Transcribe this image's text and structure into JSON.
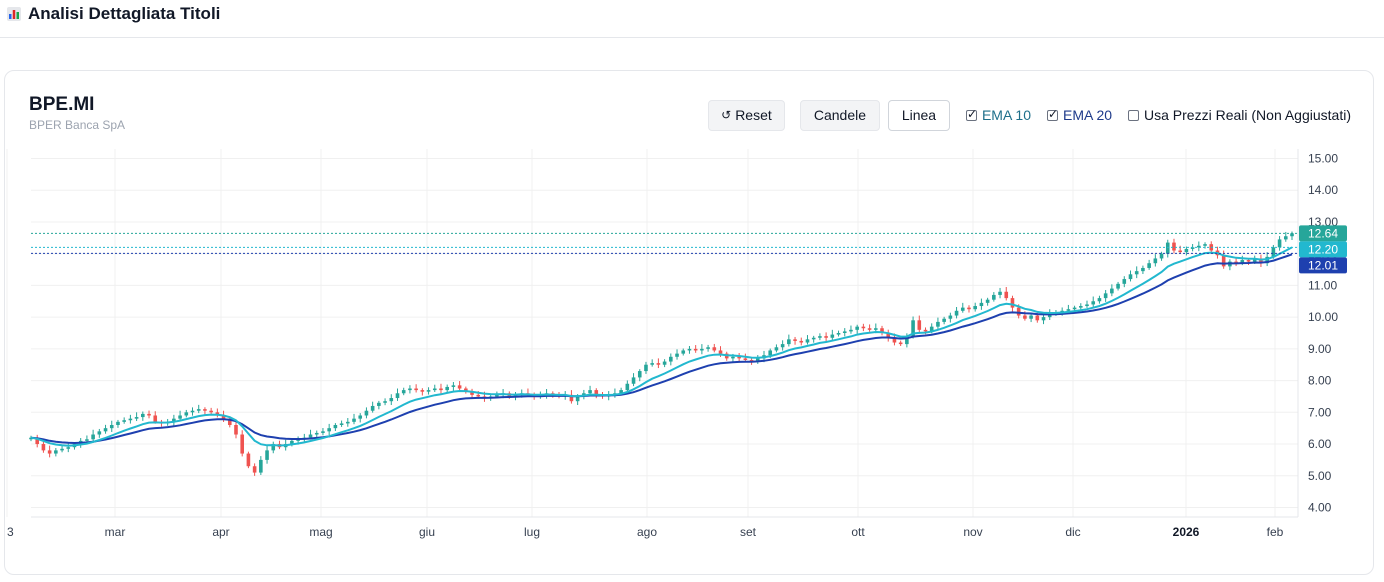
{
  "header": {
    "title": "Analisi Dettagliata Titoli",
    "icon": "bar-chart-icon"
  },
  "stock": {
    "ticker": "BPE.MI",
    "name": "BPER Banca SpA"
  },
  "controls": {
    "reset_label": "Reset",
    "candles_label": "Candele",
    "line_label": "Linea",
    "ema10_label": "EMA 10",
    "ema20_label": "EMA 20",
    "real_prices_label": "Usa Prezzi Reali (Non Aggiustati)",
    "ema10_checked": true,
    "ema20_checked": true,
    "real_prices_checked": false
  },
  "colors": {
    "up": "#26a69a",
    "down": "#ef5350",
    "ema10": "#22b8cf",
    "ema20": "#1e40af",
    "last_price_badge": "#26a69a",
    "ema10_badge": "#22b8cf",
    "ema20_badge": "#1e40af"
  },
  "chart_data": {
    "type": "candlestick",
    "y_ticks": [
      "15.00",
      "14.00",
      "13.00",
      "12.00",
      "11.00",
      "10.00",
      "9.00",
      "8.00",
      "7.00",
      "6.00",
      "5.00",
      "4.00"
    ],
    "ylim": [
      3.7,
      15.3
    ],
    "x_ticks": [
      "3",
      "mar",
      "apr",
      "mag",
      "giu",
      "lug",
      "ago",
      "set",
      "ott",
      "nov",
      "dic",
      "2026",
      "feb"
    ],
    "x_ticks_bold": [
      "2026"
    ],
    "last_price": "12.64",
    "ema10_value": "12.20",
    "ema20_value": "12.01",
    "grid": true,
    "close_series": [
      6.2,
      6.0,
      5.8,
      5.7,
      5.8,
      5.85,
      5.9,
      6.0,
      6.1,
      6.15,
      6.3,
      6.4,
      6.5,
      6.6,
      6.7,
      6.75,
      6.8,
      6.85,
      6.95,
      6.9,
      6.7,
      6.65,
      6.7,
      6.8,
      6.9,
      7.0,
      7.05,
      7.1,
      7.05,
      7.0,
      6.9,
      6.8,
      6.6,
      6.3,
      5.7,
      5.3,
      5.1,
      5.5,
      5.8,
      6.0,
      5.9,
      6.0,
      6.1,
      6.15,
      6.2,
      6.3,
      6.35,
      6.4,
      6.5,
      6.6,
      6.65,
      6.7,
      6.8,
      6.9,
      7.05,
      7.2,
      7.3,
      7.35,
      7.45,
      7.6,
      7.7,
      7.75,
      7.7,
      7.65,
      7.7,
      7.75,
      7.7,
      7.8,
      7.85,
      7.75,
      7.65,
      7.55,
      7.5,
      7.45,
      7.5,
      7.55,
      7.6,
      7.5,
      7.55,
      7.6,
      7.55,
      7.5,
      7.55,
      7.6,
      7.55,
      7.5,
      7.55,
      7.35,
      7.5,
      7.6,
      7.7,
      7.55,
      7.5,
      7.55,
      7.6,
      7.7,
      7.9,
      8.1,
      8.3,
      8.5,
      8.55,
      8.5,
      8.6,
      8.75,
      8.85,
      8.95,
      9.0,
      8.95,
      9.0,
      9.05,
      8.95,
      8.85,
      8.7,
      8.75,
      8.7,
      8.65,
      8.6,
      8.7,
      8.8,
      8.95,
      9.05,
      9.15,
      9.3,
      9.25,
      9.2,
      9.3,
      9.35,
      9.4,
      9.35,
      9.45,
      9.5,
      9.55,
      9.6,
      9.7,
      9.65,
      9.6,
      9.65,
      9.5,
      9.35,
      9.2,
      9.15,
      9.4,
      9.9,
      9.6,
      9.55,
      9.7,
      9.85,
      9.95,
      10.05,
      10.2,
      10.3,
      10.25,
      10.35,
      10.45,
      10.55,
      10.7,
      10.8,
      10.6,
      10.3,
      10.05,
      9.95,
      10.05,
      9.9,
      10.0,
      10.1,
      10.15,
      10.2,
      10.25,
      10.3,
      10.35,
      10.4,
      10.5,
      10.6,
      10.75,
      10.9,
      11.05,
      11.2,
      11.35,
      11.45,
      11.55,
      11.7,
      11.85,
      12.0,
      12.35,
      12.1,
      12.05,
      12.15,
      12.2,
      12.25,
      12.3,
      12.1,
      11.95,
      11.6,
      11.75,
      11.7,
      11.8,
      11.75,
      11.85,
      11.7,
      11.9,
      12.2,
      12.45,
      12.55,
      12.64
    ]
  }
}
